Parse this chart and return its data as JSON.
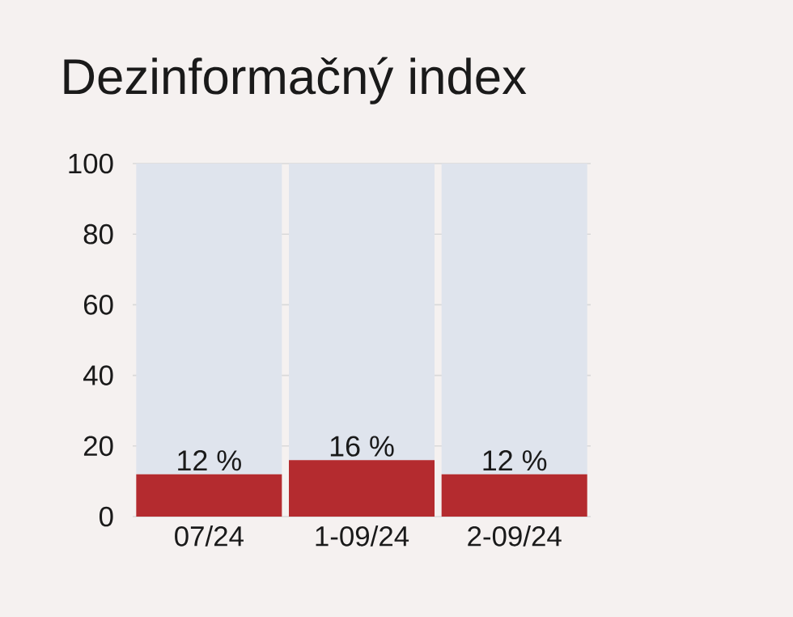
{
  "chart_data": {
    "type": "bar",
    "title": "Dezinformačný index",
    "stacked": true,
    "grid": "y",
    "categories": [
      "07/24",
      "1-09/24",
      "2-09/24"
    ],
    "series": [
      {
        "color": "#b42b2f",
        "values": [
          12,
          16,
          12
        ],
        "value_labels": [
          "12 %",
          "16 %",
          "12 %"
        ]
      },
      {
        "color": "#dfe4ed",
        "values": [
          88,
          84,
          88
        ]
      }
    ],
    "ylim": [
      0,
      100
    ],
    "yticks": [
      0,
      20,
      40,
      60,
      80,
      100
    ]
  }
}
